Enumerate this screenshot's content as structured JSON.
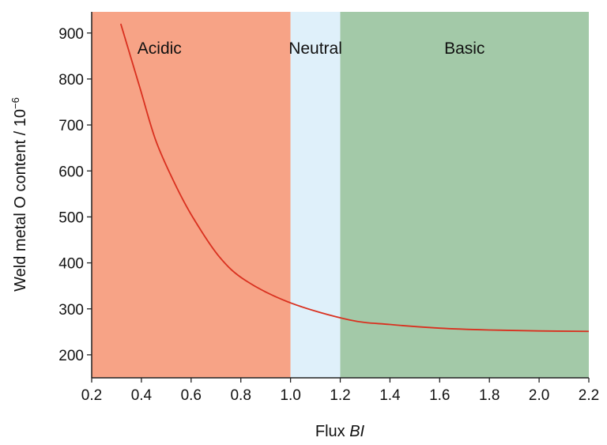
{
  "chart_data": {
    "type": "line",
    "title": "",
    "xlabel": "Flux ",
    "xlabel_italic": "BI",
    "ylabel": "Weld metal O content / 10",
    "ylabel_exp": "−6",
    "xlim": [
      0.2,
      2.2
    ],
    "ylim": [
      150,
      946
    ],
    "xticks": [
      "0.2",
      "0.4",
      "0.6",
      "0.8",
      "1.0",
      "1.2",
      "1.4",
      "1.6",
      "1.8",
      "2.0",
      "2.2"
    ],
    "yticks": [
      "200",
      "300",
      "400",
      "500",
      "600",
      "700",
      "800",
      "900"
    ],
    "regions": [
      {
        "label": "Acidic",
        "from": 0.2,
        "to": 1.0,
        "color": "#f7a386"
      },
      {
        "label": "Neutral",
        "from": 1.0,
        "to": 1.2,
        "color": "#dff0fa"
      },
      {
        "label": "Basic",
        "from": 1.2,
        "to": 2.2,
        "color": "#a3c9a8"
      }
    ],
    "series": [
      {
        "name": "O content",
        "color": "#d9301f",
        "x": [
          0.317,
          0.394,
          0.458,
          0.533,
          0.607,
          0.714,
          0.821,
          1.0,
          1.237,
          1.4,
          1.6,
          1.8,
          2.0,
          2.2
        ],
        "y": [
          920,
          781,
          666,
          574,
          499,
          413,
          361,
          313,
          276,
          266,
          258,
          254,
          252,
          251
        ]
      }
    ],
    "grid": false
  }
}
